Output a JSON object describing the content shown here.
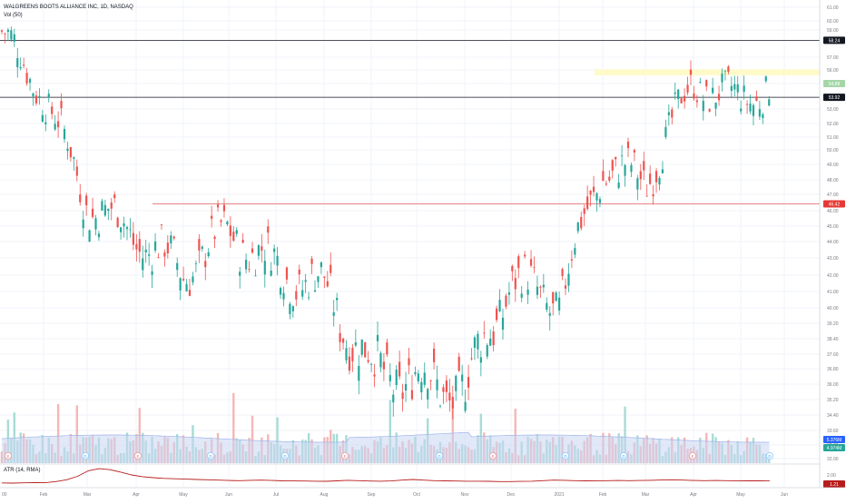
{
  "legend": {
    "title": "WALGREENS BOOTS ALLIANCE INC, 1D, NASDAQ",
    "volume": "Vol (50)",
    "atr": "ATR (14, RMA)"
  },
  "colors": {
    "up": "#26a69a",
    "down": "#ef5350",
    "vol_up": "#a8dcd6",
    "vol_down": "#f6b7b6",
    "vol_ma_fill": "#c9d5f2",
    "atr_line": "#b71c1c",
    "h_line": "#131722",
    "h_line_red": "#e57373",
    "zone": "#fff9c4"
  },
  "chart_data": [
    {
      "type": "candlestick",
      "title": "WALGREENS BOOTS ALLIANCE INC, 1D, NASDAQ",
      "x_labels": [
        "Feb",
        "Mar",
        "Apr",
        "May",
        "Jun",
        "Jul",
        "Aug",
        "Sep",
        "Oct",
        "Nov",
        "Dec",
        "2021",
        "Feb",
        "Mar",
        "Apr",
        "May",
        "Jun"
      ],
      "y_ticks": [
        "61.00",
        "60.00",
        "59.00",
        "57.00",
        "56.00",
        "55.00",
        "53.00",
        "52.00",
        "51.00",
        "50.00",
        "49.00",
        "48.00",
        "47.00",
        "46.00",
        "45.00",
        "44.00",
        "43.00",
        "42.00",
        "41.00",
        "40.00",
        "39.20",
        "38.40",
        "37.60",
        "36.80",
        "36.00",
        "35.20",
        "34.40",
        "33.60",
        "32.80",
        "32.00"
      ],
      "price_labels": [
        {
          "text": "58.24",
          "kind": "line"
        },
        {
          "text": "54.88",
          "kind": "last"
        },
        {
          "text": "53.92",
          "kind": "line"
        },
        {
          "text": "46.42",
          "kind": "line_red"
        }
      ],
      "horizontal_lines": [
        58.24,
        53.92,
        46.42
      ],
      "resistance_zone": [
        55.6,
        56.05
      ],
      "ohlc_anchors": [
        {
          "date": "Jan",
          "close": 58.7
        },
        {
          "date": "Feb",
          "close": 54.2
        },
        {
          "date": "Mar",
          "close": 46.6
        },
        {
          "date": "Apr",
          "close": 44.3
        },
        {
          "date": "May",
          "close": 42.2
        },
        {
          "date": "Jun",
          "close": 44.7
        },
        {
          "date": "Jul",
          "close": 42.4
        },
        {
          "date": "Aug",
          "close": 41.2
        },
        {
          "date": "Sep",
          "close": 36.8
        },
        {
          "date": "Oct",
          "close": 36.2
        },
        {
          "date": "Nov",
          "close": 35.7
        },
        {
          "date": "Dec",
          "close": 41.6
        },
        {
          "date": "2021",
          "close": 40.4
        },
        {
          "date": "Feb",
          "close": 48.8
        },
        {
          "date": "Mar",
          "close": 47.9
        },
        {
          "date": "Apr",
          "close": 55.0
        },
        {
          "date": "May",
          "close": 53.6
        },
        {
          "date": "end",
          "close": 54.88
        }
      ]
    },
    {
      "type": "bar",
      "title": "Vol (50)",
      "values_label": [
        "5.376M",
        "4.974M"
      ],
      "event_markers": [
        "E",
        "D",
        "E",
        "D",
        "D",
        "E",
        "D",
        "E",
        "D",
        "D",
        "E",
        "D",
        "E",
        "D"
      ]
    },
    {
      "type": "line",
      "title": "ATR (14, RMA)",
      "y_ticks": [
        "2.00"
      ],
      "last_value": "1.21",
      "values": [
        0.55,
        0.52,
        0.56,
        0.6,
        0.58,
        0.75,
        1.0,
        1.5,
        2.3,
        2.6,
        2.45,
        2.1,
        1.7,
        1.45,
        1.3,
        1.2,
        1.15,
        1.1,
        1.05,
        1.0,
        0.95,
        0.9,
        0.88,
        0.92,
        0.95,
        0.9,
        0.85,
        0.83,
        0.82,
        0.8,
        0.78,
        0.85,
        0.92,
        0.88,
        0.82,
        0.8,
        0.83,
        0.95,
        1.05,
        0.95,
        0.88,
        0.85,
        0.82,
        0.8,
        0.8,
        0.78,
        0.75,
        0.75,
        0.77,
        0.8,
        0.88,
        0.95,
        0.92,
        0.88,
        0.85,
        0.86,
        0.88,
        0.9,
        0.88,
        0.9,
        0.92,
        0.96,
        1.0,
        0.95,
        0.9,
        0.88,
        0.9,
        0.88,
        0.86,
        0.85,
        0.85,
        0.88
      ]
    }
  ]
}
